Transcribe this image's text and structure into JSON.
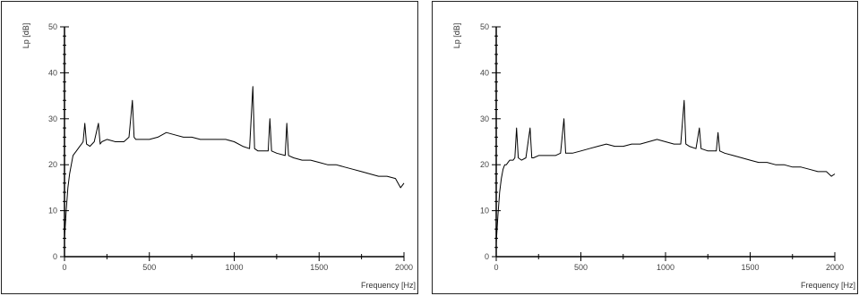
{
  "chart_data": [
    {
      "type": "line",
      "title": "",
      "xlabel": "Frequency [Hz]",
      "ylabel": "Lp [dB]",
      "xlim": [
        0,
        2000
      ],
      "ylim": [
        0,
        50
      ],
      "x_ticks": [
        0,
        500,
        1000,
        1500,
        2000
      ],
      "y_ticks": [
        0,
        10,
        20,
        30,
        40,
        50
      ],
      "grid": false,
      "line_color": "#000000",
      "series": [
        {
          "x": [
            0,
            10,
            20,
            30,
            40,
            50,
            60,
            70,
            80,
            90,
            100,
            110,
            120,
            130,
            150,
            175,
            200,
            210,
            220,
            250,
            300,
            350,
            380,
            400,
            410,
            420,
            450,
            500,
            550,
            600,
            650,
            700,
            750,
            800,
            850,
            900,
            950,
            1000,
            1050,
            1090,
            1110,
            1120,
            1140,
            1200,
            1210,
            1220,
            1250,
            1300,
            1310,
            1320,
            1350,
            1400,
            1450,
            1500,
            1550,
            1600,
            1650,
            1700,
            1750,
            1800,
            1850,
            1900,
            1950,
            1980,
            2000
          ],
          "y": [
            4,
            10,
            15,
            18,
            20,
            22,
            22.5,
            23,
            23.5,
            24,
            24.5,
            25,
            29,
            24.5,
            24,
            25,
            29,
            24.5,
            25,
            25.5,
            25,
            25,
            26,
            34,
            26,
            25.5,
            25.5,
            25.5,
            26,
            27,
            26.5,
            26,
            26,
            25.5,
            25.5,
            25.5,
            25.5,
            25,
            24,
            23.5,
            37,
            23.5,
            23,
            23,
            30,
            23,
            22.5,
            22,
            29,
            22,
            21.5,
            21,
            21,
            20.5,
            20,
            20,
            19.5,
            19,
            18.5,
            18,
            17.5,
            17.5,
            17,
            15,
            16
          ]
        }
      ]
    },
    {
      "type": "line",
      "title": "",
      "xlabel": "Frequency [Hz]",
      "ylabel": "Lp [dB]",
      "xlim": [
        0,
        2000
      ],
      "ylim": [
        0,
        50
      ],
      "x_ticks": [
        0,
        500,
        1000,
        1500,
        2000
      ],
      "y_ticks": [
        0,
        10,
        20,
        30,
        40,
        50
      ],
      "grid": false,
      "line_color": "#000000",
      "series": [
        {
          "x": [
            0,
            10,
            20,
            30,
            40,
            50,
            60,
            70,
            80,
            100,
            110,
            120,
            130,
            150,
            175,
            200,
            210,
            220,
            250,
            300,
            350,
            380,
            400,
            410,
            420,
            450,
            500,
            550,
            600,
            650,
            700,
            750,
            800,
            850,
            900,
            950,
            1000,
            1050,
            1090,
            1110,
            1120,
            1140,
            1180,
            1200,
            1210,
            1250,
            1300,
            1310,
            1320,
            1350,
            1400,
            1450,
            1500,
            1550,
            1600,
            1650,
            1700,
            1750,
            1800,
            1850,
            1900,
            1950,
            1980,
            2000
          ],
          "y": [
            3,
            9,
            14,
            17,
            19,
            20,
            20,
            20.5,
            21,
            21,
            21.5,
            28,
            21.5,
            21,
            21.5,
            28,
            21.5,
            21.5,
            22,
            22,
            22,
            22.5,
            30,
            22.5,
            22.5,
            22.5,
            23,
            23.5,
            24,
            24.5,
            24,
            24,
            24.5,
            24.5,
            25,
            25.5,
            25,
            24.5,
            24.5,
            34,
            24.5,
            24,
            23.5,
            28,
            23.5,
            23,
            23,
            27,
            23,
            22.5,
            22,
            21.5,
            21,
            20.5,
            20.5,
            20,
            20,
            19.5,
            19.5,
            19,
            18.5,
            18.5,
            17.5,
            18
          ]
        }
      ]
    }
  ]
}
